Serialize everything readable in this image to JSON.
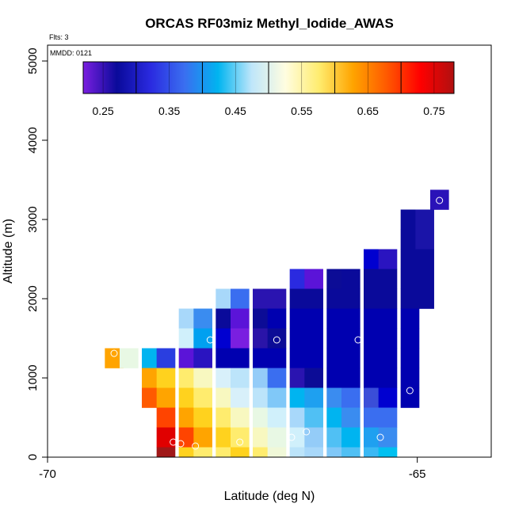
{
  "chart_data": {
    "type": "heatmap",
    "title": "ORCAS RF03miz Methyl_Iodide_AWAS",
    "flts_label": "Flts: 3",
    "mmdd_label": "MMDD: 0121",
    "xlabel": "Latitude (deg N)",
    "ylabel": "Altitude (m)",
    "xlim": [
      -70,
      -64
    ],
    "ylim": [
      0,
      5200
    ],
    "x_ticks": [
      -70,
      -65
    ],
    "y_ticks": [
      0,
      1000,
      2000,
      3000,
      4000,
      5000
    ],
    "cell_size": {
      "lat": 0.25,
      "alt": 250
    },
    "colorbar": {
      "min": 0.22,
      "max": 0.78,
      "ticks": [
        0.25,
        0.35,
        0.45,
        0.55,
        0.65,
        0.75
      ],
      "tick_labels": [
        "0.25",
        "0.35",
        "0.45",
        "0.55",
        "0.65",
        "0.75"
      ],
      "boundaries": [
        0.3,
        0.4,
        0.5,
        0.6,
        0.7
      ],
      "colors": [
        "#7a1fe0",
        "#0a0a9a",
        "#2a2ae0",
        "#3a6ef0",
        "#00b4f0",
        "#bfe6fa",
        "#fffde0",
        "#ffec6e",
        "#ffa400",
        "#ff5a00",
        "#ff0000",
        "#b01010"
      ]
    },
    "cells": [
      {
        "lat": -64.7,
        "alt": 3250,
        "color": "#2a12b8"
      },
      {
        "lat": -65.1,
        "alt": 3000,
        "color": "#0a0a9a"
      },
      {
        "lat": -64.9,
        "alt": 3000,
        "color": "#1a14a8"
      },
      {
        "lat": -65.1,
        "alt": 2750,
        "color": "#0a0a9a"
      },
      {
        "lat": -64.9,
        "alt": 2750,
        "color": "#1a14a8"
      },
      {
        "lat": -65.6,
        "alt": 2500,
        "color": "#0000d0"
      },
      {
        "lat": -65.4,
        "alt": 2500,
        "color": "#2a14c0"
      },
      {
        "lat": -65.1,
        "alt": 2500,
        "color": "#0a0a9a"
      },
      {
        "lat": -64.9,
        "alt": 2500,
        "color": "#0a0a9a"
      },
      {
        "lat": -66.6,
        "alt": 2250,
        "color": "#2a2ae0"
      },
      {
        "lat": -66.4,
        "alt": 2250,
        "color": "#5b14d8"
      },
      {
        "lat": -66.1,
        "alt": 2250,
        "color": "#0c0c96"
      },
      {
        "lat": -65.9,
        "alt": 2250,
        "color": "#0a0a9a"
      },
      {
        "lat": -65.6,
        "alt": 2250,
        "color": "#0a0a9a"
      },
      {
        "lat": -65.4,
        "alt": 2250,
        "color": "#0a0a9a"
      },
      {
        "lat": -65.1,
        "alt": 2250,
        "color": "#0a0a9a"
      },
      {
        "lat": -64.9,
        "alt": 2250,
        "color": "#0a0a9a"
      },
      {
        "lat": -67.6,
        "alt": 2000,
        "color": "#a8d8fa"
      },
      {
        "lat": -67.4,
        "alt": 2000,
        "color": "#3a6ef0"
      },
      {
        "lat": -67.1,
        "alt": 2000,
        "color": "#2a14b0"
      },
      {
        "lat": -66.9,
        "alt": 2000,
        "color": "#2a14b0"
      },
      {
        "lat": -66.6,
        "alt": 2000,
        "color": "#0a0a9a"
      },
      {
        "lat": -66.4,
        "alt": 2000,
        "color": "#0a0a9a"
      },
      {
        "lat": -66.1,
        "alt": 2000,
        "color": "#0a0a9a"
      },
      {
        "lat": -65.9,
        "alt": 2000,
        "color": "#0a0a9a"
      },
      {
        "lat": -65.6,
        "alt": 2000,
        "color": "#0a0a9a"
      },
      {
        "lat": -65.4,
        "alt": 2000,
        "color": "#0a0a9a"
      },
      {
        "lat": -65.1,
        "alt": 2000,
        "color": "#0a0a9a"
      },
      {
        "lat": -64.9,
        "alt": 2000,
        "color": "#0a0a9a"
      },
      {
        "lat": -68.1,
        "alt": 1750,
        "color": "#a8d8fa"
      },
      {
        "lat": -67.9,
        "alt": 1750,
        "color": "#3a8cf0"
      },
      {
        "lat": -67.6,
        "alt": 1750,
        "color": "#0a0a9a"
      },
      {
        "lat": -67.4,
        "alt": 1750,
        "color": "#5b14d8"
      },
      {
        "lat": -67.1,
        "alt": 1750,
        "color": "#0c0c96"
      },
      {
        "lat": -66.9,
        "alt": 1750,
        "color": "#0000b0"
      },
      {
        "lat": -66.6,
        "alt": 1750,
        "color": "#0000b0"
      },
      {
        "lat": -66.4,
        "alt": 1750,
        "color": "#0000b0"
      },
      {
        "lat": -66.1,
        "alt": 1750,
        "color": "#0000b0"
      },
      {
        "lat": -65.9,
        "alt": 1750,
        "color": "#0000b0"
      },
      {
        "lat": -65.6,
        "alt": 1750,
        "color": "#0000b0"
      },
      {
        "lat": -65.4,
        "alt": 1750,
        "color": "#0000b0"
      },
      {
        "lat": -65.1,
        "alt": 1750,
        "color": "#0000b0"
      },
      {
        "lat": -68.1,
        "alt": 1500,
        "color": "#d0f0fb"
      },
      {
        "lat": -67.9,
        "alt": 1500,
        "color": "#00a0f0"
      },
      {
        "lat": -67.6,
        "alt": 1500,
        "color": "#0000d0"
      },
      {
        "lat": -67.4,
        "alt": 1500,
        "color": "#7a1fe0"
      },
      {
        "lat": -67.1,
        "alt": 1500,
        "color": "#2a14a8"
      },
      {
        "lat": -66.9,
        "alt": 1500,
        "color": "#0c0c96"
      },
      {
        "lat": -66.6,
        "alt": 1500,
        "color": "#0000b0"
      },
      {
        "lat": -66.4,
        "alt": 1500,
        "color": "#0000b0"
      },
      {
        "lat": -66.1,
        "alt": 1500,
        "color": "#0000b0"
      },
      {
        "lat": -65.9,
        "alt": 1500,
        "color": "#0000b0"
      },
      {
        "lat": -65.6,
        "alt": 1500,
        "color": "#0000b0"
      },
      {
        "lat": -65.4,
        "alt": 1500,
        "color": "#0000b0"
      },
      {
        "lat": -65.1,
        "alt": 1500,
        "color": "#0000b0"
      },
      {
        "lat": -69.1,
        "alt": 1250,
        "color": "#ffa400"
      },
      {
        "lat": -68.9,
        "alt": 1250,
        "color": "#e8f8e4"
      },
      {
        "lat": -68.6,
        "alt": 1250,
        "color": "#00b4f0"
      },
      {
        "lat": -68.4,
        "alt": 1250,
        "color": "#2a3ee0"
      },
      {
        "lat": -68.1,
        "alt": 1250,
        "color": "#5b14d8"
      },
      {
        "lat": -67.9,
        "alt": 1250,
        "color": "#2a14c0"
      },
      {
        "lat": -67.6,
        "alt": 1250,
        "color": "#0000b0"
      },
      {
        "lat": -67.4,
        "alt": 1250,
        "color": "#0000b0"
      },
      {
        "lat": -67.1,
        "alt": 1250,
        "color": "#0000b0"
      },
      {
        "lat": -66.9,
        "alt": 1250,
        "color": "#0000b0"
      },
      {
        "lat": -66.6,
        "alt": 1250,
        "color": "#0000b0"
      },
      {
        "lat": -66.4,
        "alt": 1250,
        "color": "#0000b0"
      },
      {
        "lat": -66.1,
        "alt": 1250,
        "color": "#0000b0"
      },
      {
        "lat": -65.9,
        "alt": 1250,
        "color": "#0000b0"
      },
      {
        "lat": -65.6,
        "alt": 1250,
        "color": "#0000b0"
      },
      {
        "lat": -65.4,
        "alt": 1250,
        "color": "#0000b0"
      },
      {
        "lat": -65.1,
        "alt": 1250,
        "color": "#0000b0"
      },
      {
        "lat": -68.6,
        "alt": 1000,
        "color": "#ffa400"
      },
      {
        "lat": -68.4,
        "alt": 1000,
        "color": "#ffd21e"
      },
      {
        "lat": -68.1,
        "alt": 1000,
        "color": "#ffec6e"
      },
      {
        "lat": -67.9,
        "alt": 1000,
        "color": "#f8f8c0"
      },
      {
        "lat": -67.6,
        "alt": 1000,
        "color": "#d8f0fa"
      },
      {
        "lat": -67.4,
        "alt": 1000,
        "color": "#bce4fa"
      },
      {
        "lat": -67.1,
        "alt": 1000,
        "color": "#94ccf8"
      },
      {
        "lat": -66.9,
        "alt": 1000,
        "color": "#3a6ef0"
      },
      {
        "lat": -66.6,
        "alt": 1000,
        "color": "#2a14b0"
      },
      {
        "lat": -66.4,
        "alt": 1000,
        "color": "#0c0c96"
      },
      {
        "lat": -66.1,
        "alt": 1000,
        "color": "#0000b0"
      },
      {
        "lat": -65.9,
        "alt": 1000,
        "color": "#0000b0"
      },
      {
        "lat": -65.6,
        "alt": 1000,
        "color": "#0000b0"
      },
      {
        "lat": -65.4,
        "alt": 1000,
        "color": "#0000b0"
      },
      {
        "lat": -65.1,
        "alt": 1000,
        "color": "#0000b0"
      },
      {
        "lat": -68.6,
        "alt": 750,
        "color": "#ff5a00"
      },
      {
        "lat": -68.4,
        "alt": 750,
        "color": "#ffa400"
      },
      {
        "lat": -68.1,
        "alt": 750,
        "color": "#ffd21e"
      },
      {
        "lat": -67.9,
        "alt": 750,
        "color": "#ffec6e"
      },
      {
        "lat": -67.6,
        "alt": 750,
        "color": "#f8f8c0"
      },
      {
        "lat": -67.4,
        "alt": 750,
        "color": "#d8f0fa"
      },
      {
        "lat": -67.1,
        "alt": 750,
        "color": "#bce4fa"
      },
      {
        "lat": -66.9,
        "alt": 750,
        "color": "#80c8f8"
      },
      {
        "lat": -66.6,
        "alt": 750,
        "color": "#00b4f0"
      },
      {
        "lat": -66.4,
        "alt": 750,
        "color": "#1ea0f0"
      },
      {
        "lat": -66.1,
        "alt": 750,
        "color": "#3a8cf0"
      },
      {
        "lat": -65.9,
        "alt": 750,
        "color": "#3a6ef0"
      },
      {
        "lat": -65.6,
        "alt": 750,
        "color": "#3a4ed8"
      },
      {
        "lat": -65.4,
        "alt": 750,
        "color": "#0000d0"
      },
      {
        "lat": -65.1,
        "alt": 750,
        "color": "#0000b0"
      },
      {
        "lat": -68.4,
        "alt": 500,
        "color": "#ff4400"
      },
      {
        "lat": -68.1,
        "alt": 500,
        "color": "#ffa400"
      },
      {
        "lat": -67.9,
        "alt": 500,
        "color": "#ffd21e"
      },
      {
        "lat": -67.6,
        "alt": 500,
        "color": "#ffec6e"
      },
      {
        "lat": -67.4,
        "alt": 500,
        "color": "#f8f8c0"
      },
      {
        "lat": -67.1,
        "alt": 500,
        "color": "#e8f8e4"
      },
      {
        "lat": -66.9,
        "alt": 500,
        "color": "#d0f0fb"
      },
      {
        "lat": -66.6,
        "alt": 500,
        "color": "#a8d8fa"
      },
      {
        "lat": -66.4,
        "alt": 500,
        "color": "#50c0f4"
      },
      {
        "lat": -66.1,
        "alt": 500,
        "color": "#00b4f0"
      },
      {
        "lat": -65.9,
        "alt": 500,
        "color": "#3a8cf0"
      },
      {
        "lat": -65.6,
        "alt": 500,
        "color": "#3a6ef0"
      },
      {
        "lat": -65.4,
        "alt": 500,
        "color": "#3a6ef0"
      },
      {
        "lat": -68.4,
        "alt": 250,
        "color": "#e00000"
      },
      {
        "lat": -68.1,
        "alt": 250,
        "color": "#ff4400"
      },
      {
        "lat": -67.9,
        "alt": 250,
        "color": "#ffa400"
      },
      {
        "lat": -67.6,
        "alt": 250,
        "color": "#ffd21e"
      },
      {
        "lat": -67.4,
        "alt": 250,
        "color": "#ffec6e"
      },
      {
        "lat": -67.1,
        "alt": 250,
        "color": "#f8f8c0"
      },
      {
        "lat": -66.9,
        "alt": 250,
        "color": "#e8f8e4"
      },
      {
        "lat": -66.6,
        "alt": 250,
        "color": "#d0f0fb"
      },
      {
        "lat": -66.4,
        "alt": 250,
        "color": "#94ccf8"
      },
      {
        "lat": -66.1,
        "alt": 250,
        "color": "#50c0f4"
      },
      {
        "lat": -65.9,
        "alt": 250,
        "color": "#00b4f0"
      },
      {
        "lat": -65.6,
        "alt": 250,
        "color": "#1ea0f0"
      },
      {
        "lat": -65.4,
        "alt": 250,
        "color": "#3a8cf0"
      },
      {
        "lat": -68.4,
        "alt": 0,
        "color": "#a01818"
      },
      {
        "lat": -68.1,
        "alt": 0,
        "color": "#ffd21e"
      },
      {
        "lat": -67.9,
        "alt": 0,
        "color": "#ffec6e"
      },
      {
        "lat": -67.6,
        "alt": 0,
        "color": "#ffec6e"
      },
      {
        "lat": -67.4,
        "alt": 0,
        "color": "#ffd21e"
      },
      {
        "lat": -67.1,
        "alt": 0,
        "color": "#ffec6e"
      },
      {
        "lat": -66.9,
        "alt": 0,
        "color": "#f0f8d8"
      },
      {
        "lat": -66.6,
        "alt": 0,
        "color": "#bce4fa"
      },
      {
        "lat": -66.4,
        "alt": 0,
        "color": "#a8d8fa"
      },
      {
        "lat": -66.1,
        "alt": 0,
        "color": "#80c8f8"
      },
      {
        "lat": -65.9,
        "alt": 0,
        "color": "#50c0f4"
      },
      {
        "lat": -65.6,
        "alt": 0,
        "color": "#3ab8f4"
      },
      {
        "lat": -65.4,
        "alt": 0,
        "color": "#00c0f0"
      }
    ],
    "sample_points": [
      {
        "lat": -64.7,
        "alt": 3240
      },
      {
        "lat": -68.3,
        "alt": 190
      },
      {
        "lat": -68.2,
        "alt": 170
      },
      {
        "lat": -68.0,
        "alt": 140
      },
      {
        "lat": -67.4,
        "alt": 190
      },
      {
        "lat": -69.1,
        "alt": 1310
      },
      {
        "lat": -67.8,
        "alt": 1480
      },
      {
        "lat": -66.9,
        "alt": 1480
      },
      {
        "lat": -65.8,
        "alt": 1480
      },
      {
        "lat": -66.5,
        "alt": 320
      },
      {
        "lat": -66.7,
        "alt": 250
      },
      {
        "lat": -65.5,
        "alt": 250
      },
      {
        "lat": -65.1,
        "alt": 840
      }
    ]
  }
}
